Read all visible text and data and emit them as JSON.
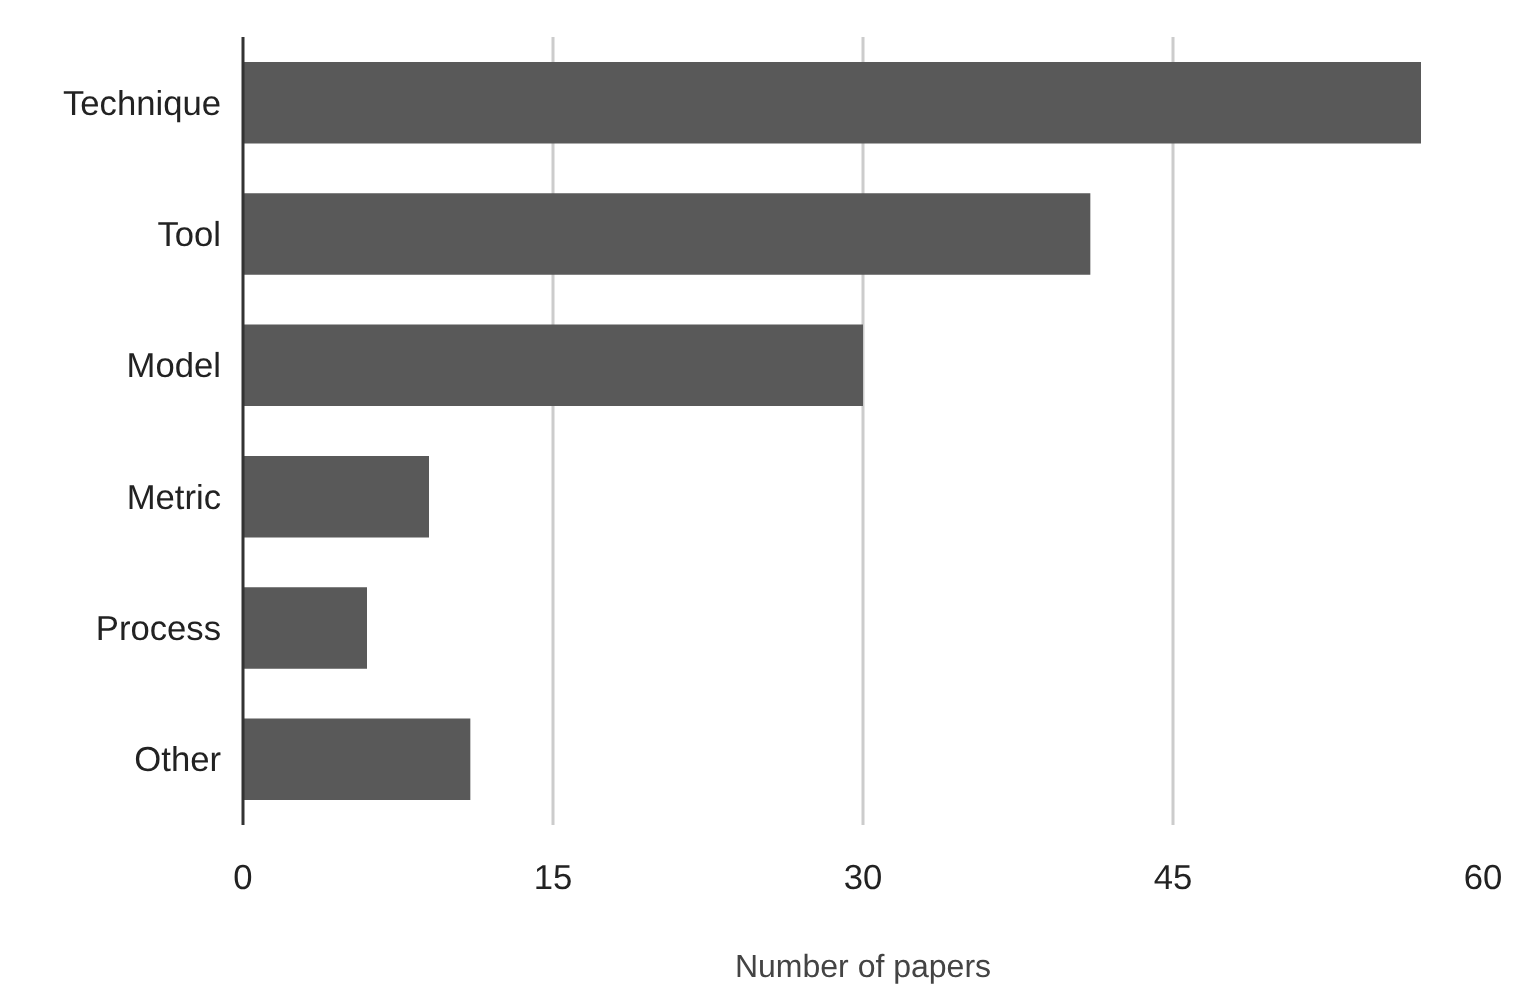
{
  "chart_data": {
    "type": "bar",
    "orientation": "horizontal",
    "categories": [
      "Technique",
      "Tool",
      "Model",
      "Metric",
      "Process",
      "Other"
    ],
    "values": [
      57,
      41,
      30,
      9,
      6,
      11
    ],
    "color": "#595959",
    "xlim": [
      0,
      60
    ],
    "xticks": [
      0,
      15,
      30,
      45,
      60
    ],
    "xlabel": "Number of papers",
    "grid": "x"
  }
}
